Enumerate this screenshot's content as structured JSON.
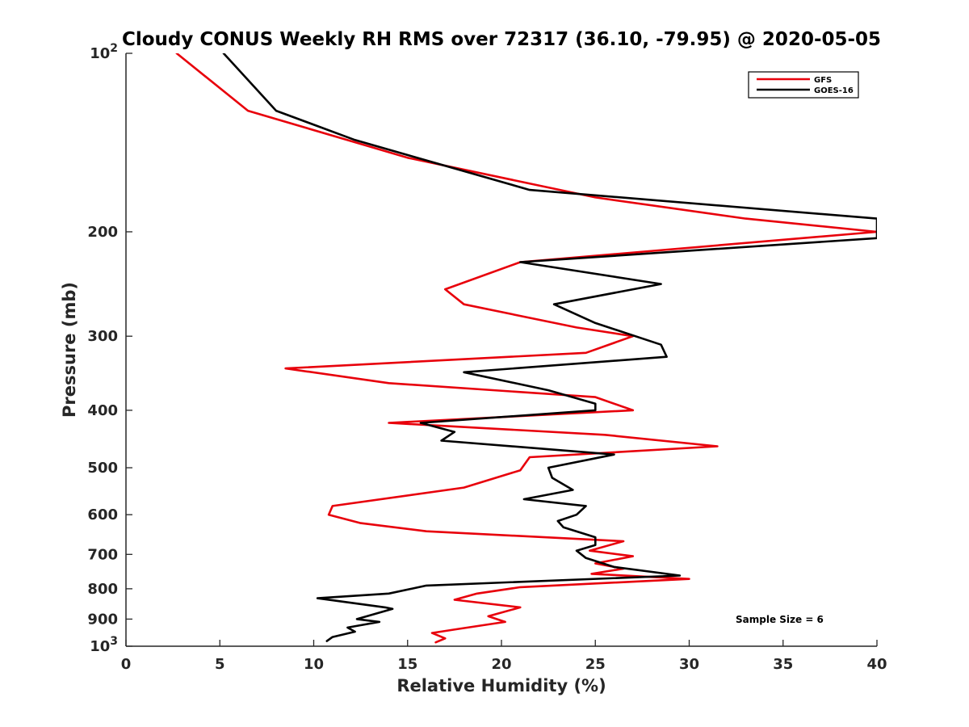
{
  "chart_data": {
    "type": "line",
    "title": "Cloudy CONUS Weekly RH RMS over 72317 (36.10, -79.95) @ 2020-05-05",
    "xlabel": "Relative Humidity (%)",
    "ylabel": "Pressure (mb)",
    "xlim": [
      0,
      40
    ],
    "ylim": [
      100,
      1000
    ],
    "y_scale": "log",
    "y_reversed": true,
    "grid": false,
    "legend_position": "top-right",
    "x_ticks": [
      "0",
      "5",
      "10",
      "15",
      "20",
      "25",
      "30",
      "35",
      "40"
    ],
    "y_ticks": [
      {
        "value": 100,
        "base": "10",
        "exp": "2"
      },
      {
        "value": 200,
        "label": "200"
      },
      {
        "value": 300,
        "label": "300"
      },
      {
        "value": 400,
        "label": "400"
      },
      {
        "value": 500,
        "label": "500"
      },
      {
        "value": 600,
        "label": "600"
      },
      {
        "value": 700,
        "label": "700"
      },
      {
        "value": 800,
        "label": "800"
      },
      {
        "value": 900,
        "label": "900"
      },
      {
        "value": 1000,
        "base": "10",
        "exp": "3"
      }
    ],
    "series": [
      {
        "name": "GFS",
        "color": "#e8000b",
        "points": [
          [
            2.7,
            100
          ],
          [
            6.5,
            125
          ],
          [
            15,
            150
          ],
          [
            25,
            175
          ],
          [
            33,
            190
          ],
          [
            40,
            200
          ],
          [
            21,
            225
          ],
          [
            17,
            250
          ],
          [
            18,
            265
          ],
          [
            24,
            290
          ],
          [
            27,
            300
          ],
          [
            24.5,
            320
          ],
          [
            8.5,
            340
          ],
          [
            14,
            360
          ],
          [
            25,
            380
          ],
          [
            27,
            400
          ],
          [
            14,
            420
          ],
          [
            25.5,
            440
          ],
          [
            31.5,
            460
          ],
          [
            21.5,
            480
          ],
          [
            21,
            505
          ],
          [
            18,
            540
          ],
          [
            11,
            580
          ],
          [
            10.8,
            600
          ],
          [
            12.5,
            620
          ],
          [
            16,
            640
          ],
          [
            26.5,
            665
          ],
          [
            24.7,
            690
          ],
          [
            27,
            705
          ],
          [
            25,
            725
          ],
          [
            26.5,
            740
          ],
          [
            24.8,
            755
          ],
          [
            30,
            770
          ],
          [
            21,
            795
          ],
          [
            18.7,
            815
          ],
          [
            17.5,
            835
          ],
          [
            21,
            860
          ],
          [
            19.3,
            890
          ],
          [
            20.2,
            910
          ],
          [
            17.7,
            935
          ],
          [
            16.3,
            950
          ],
          [
            17,
            970
          ],
          [
            16.5,
            985
          ]
        ]
      },
      {
        "name": "GOES-16",
        "color": "#000000",
        "points": [
          [
            5.2,
            100
          ],
          [
            8,
            125
          ],
          [
            12.2,
            140
          ],
          [
            21.5,
            170
          ],
          [
            40,
            190
          ],
          [
            40,
            205
          ],
          [
            21,
            225
          ],
          [
            28.5,
            245
          ],
          [
            22.8,
            265
          ],
          [
            25,
            285
          ],
          [
            28.5,
            310
          ],
          [
            28.8,
            325
          ],
          [
            18,
            345
          ],
          [
            22.5,
            370
          ],
          [
            25,
            390
          ],
          [
            25,
            400
          ],
          [
            15.7,
            420
          ],
          [
            17.5,
            435
          ],
          [
            16.8,
            450
          ],
          [
            26,
            475
          ],
          [
            22.5,
            500
          ],
          [
            22.7,
            520
          ],
          [
            23.8,
            545
          ],
          [
            21.2,
            565
          ],
          [
            24.5,
            580
          ],
          [
            24,
            600
          ],
          [
            23,
            615
          ],
          [
            23.3,
            630
          ],
          [
            25,
            655
          ],
          [
            25,
            675
          ],
          [
            24,
            690
          ],
          [
            24.5,
            710
          ],
          [
            26,
            735
          ],
          [
            29.5,
            760
          ],
          [
            16,
            790
          ],
          [
            14,
            815
          ],
          [
            10.2,
            830
          ],
          [
            13.8,
            860
          ],
          [
            14.2,
            865
          ],
          [
            12.3,
            900
          ],
          [
            13.5,
            910
          ],
          [
            11.8,
            930
          ],
          [
            12.2,
            945
          ],
          [
            11,
            965
          ],
          [
            10.7,
            980
          ]
        ]
      }
    ],
    "annotation": "Sample Size = 6"
  }
}
